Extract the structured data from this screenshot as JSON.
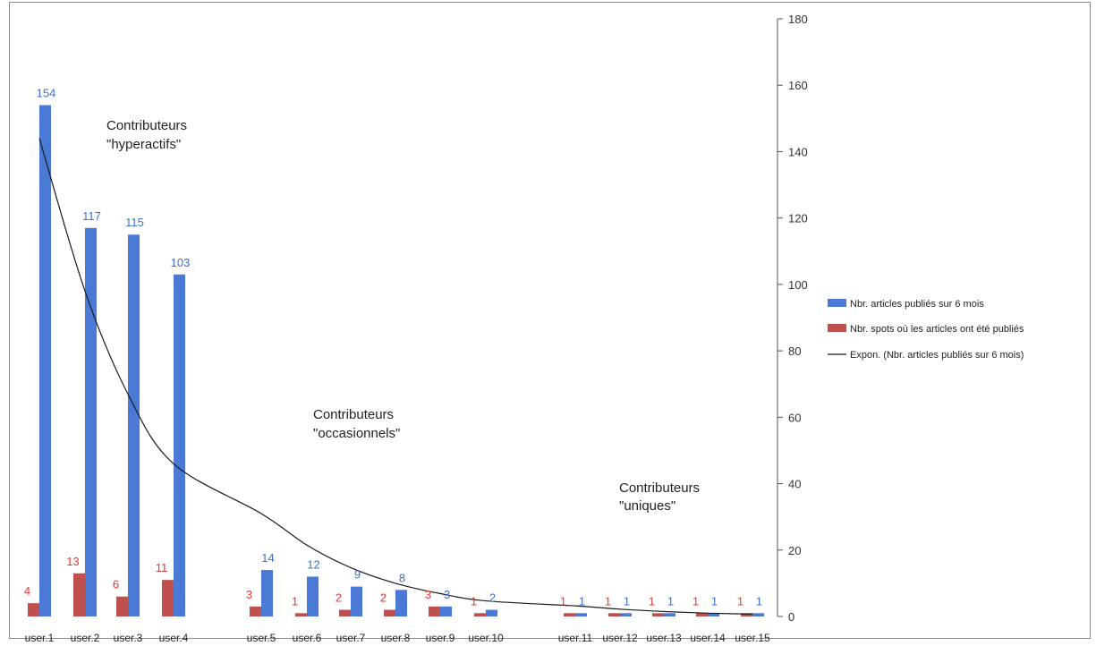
{
  "colors": {
    "series_articles": "#4a7ad6",
    "series_spots": "#c0504d",
    "label_articles": "#3d6fcf",
    "label_spots": "#e03b34",
    "trendline": "#1a1a1a",
    "axis": "#555555"
  },
  "chart_data": {
    "type": "bar",
    "categories": [
      "user.1",
      "user.2",
      "user.3",
      "user.4",
      "user.5",
      "user.6",
      "user.7",
      "user.8",
      "user.9",
      "user.10",
      "user.11",
      "user.12",
      "user.13",
      "user.14",
      "user.15"
    ],
    "series": [
      {
        "name": "Nbr. spots où les articles ont été publiés",
        "values": [
          4,
          13,
          6,
          11,
          3,
          1,
          2,
          2,
          3,
          1,
          1,
          1,
          1,
          1,
          1
        ]
      },
      {
        "name": "Nbr. articles publiés sur 6 mois",
        "values": [
          154,
          117,
          115,
          103,
          14,
          12,
          9,
          8,
          3,
          2,
          1,
          1,
          1,
          1,
          1
        ]
      }
    ],
    "trendline": {
      "name": "Expon. (Nbr. articles publiés sur 6 mois)",
      "type": "exponential",
      "values": [
        144,
        98,
        67,
        46,
        31,
        21.5,
        14.7,
        10,
        6.9,
        4.7,
        3.2,
        2.2,
        1.5,
        1.0,
        0.7
      ]
    },
    "yaxis": {
      "position": "right",
      "ylim": [
        0,
        180
      ],
      "ticks": [
        0,
        20,
        40,
        60,
        80,
        100,
        120,
        140,
        160,
        180
      ]
    },
    "legend": {
      "position": "right",
      "entries": [
        "Nbr. articles publiés sur 6 mois",
        "Nbr. spots où les articles ont été publiés",
        "Expon. (Nbr. articles publiés sur 6 mois)"
      ]
    },
    "annotations": [
      {
        "line1": "Contributeurs",
        "line2": "\"hyperactifs\""
      },
      {
        "line1": "Contributeurs",
        "line2": "\"occasionnels\""
      },
      {
        "line1": "Contributeurs",
        "line2": "\"uniques\""
      }
    ],
    "title": "",
    "xlabel": "",
    "ylabel": "",
    "grid": false
  }
}
